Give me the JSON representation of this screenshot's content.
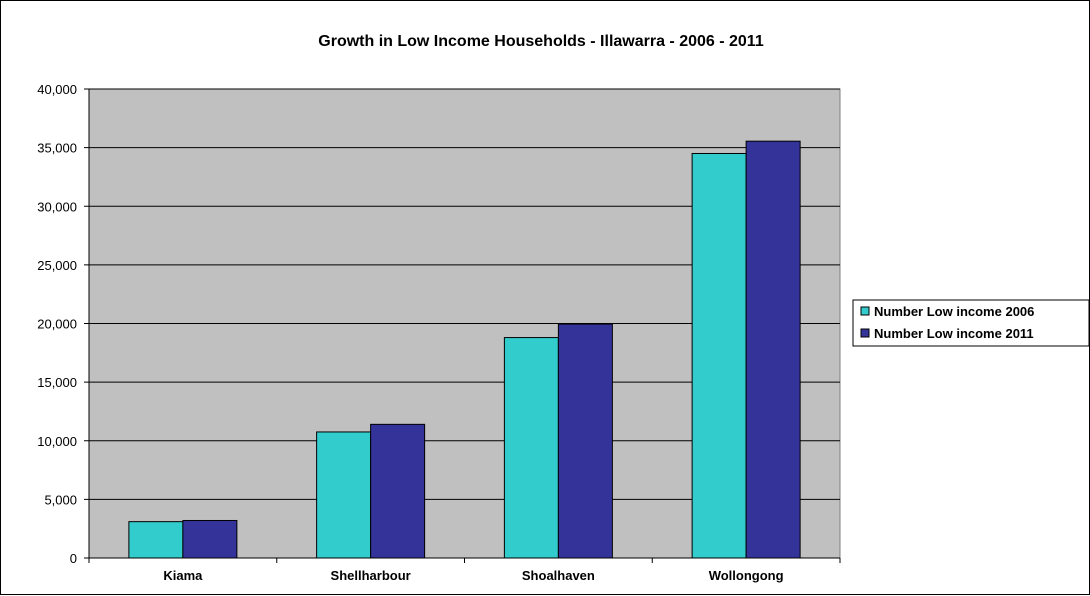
{
  "chart_data": {
    "type": "bar",
    "title": "Growth in Low Income Households - Illawarra - 2006 - 2011",
    "xlabel": "",
    "ylabel": "",
    "categories": [
      "Kiama",
      "Shellharbour",
      "Shoalhaven",
      "Wollongong"
    ],
    "series": [
      {
        "name": "Number Low income 2006",
        "values": [
          3100,
          10750,
          18800,
          34500
        ],
        "color": "#33cccc"
      },
      {
        "name": "Number Low income 2011",
        "values": [
          3200,
          11400,
          19950,
          35550
        ],
        "color": "#333399"
      }
    ],
    "ylim": [
      0,
      40000
    ],
    "yticks": [
      "0",
      "5,000",
      "10,000",
      "15,000",
      "20,000",
      "25,000",
      "30,000",
      "35,000",
      "40,000"
    ],
    "ytick_values": [
      0,
      5000,
      10000,
      15000,
      20000,
      25000,
      30000,
      35000,
      40000
    ],
    "grid": true,
    "plot_background": "#c0c0c0",
    "legend_position": "right"
  }
}
